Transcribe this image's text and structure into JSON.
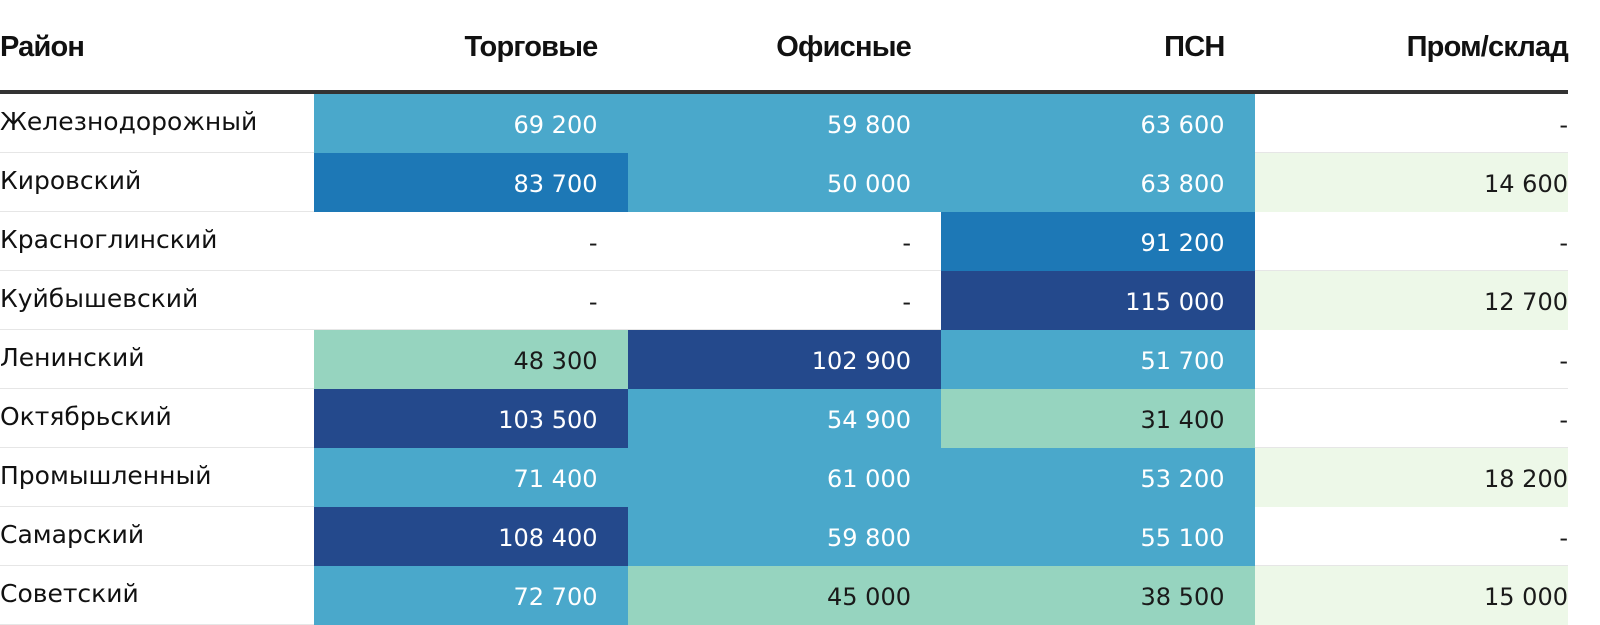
{
  "chart_data": {
    "type": "heatmap",
    "columns": [
      "Район",
      "Торговые",
      "Офисные",
      "ПСН",
      "Пром/склад"
    ],
    "rows": [
      {
        "name": "Железнодорожный",
        "values": [
          "69 200",
          "59 800",
          "63 600",
          "-"
        ]
      },
      {
        "name": "Кировский",
        "values": [
          "83 700",
          "50 000",
          "63 800",
          "14 600"
        ]
      },
      {
        "name": "Красноглинский",
        "values": [
          "-",
          "-",
          "91 200",
          "-"
        ]
      },
      {
        "name": "Куйбышевский",
        "values": [
          "-",
          "-",
          "115 000",
          "12 700"
        ]
      },
      {
        "name": "Ленинский",
        "values": [
          "48 300",
          "102 900",
          "51 700",
          "-"
        ]
      },
      {
        "name": "Октябрьский",
        "values": [
          "103 500",
          "54 900",
          "31 400",
          "-"
        ]
      },
      {
        "name": "Промышленный",
        "values": [
          "71 400",
          "61 000",
          "53 200",
          "18 200"
        ]
      },
      {
        "name": "Самарский",
        "values": [
          "108 400",
          "59 800",
          "55 100",
          "-"
        ]
      },
      {
        "name": "Советский",
        "values": [
          "72 700",
          "45 000",
          "38 500",
          "15 000"
        ]
      }
    ],
    "color_scale": [
      {
        "max": 30000,
        "color": "#edf8e8",
        "text": "#1a1a1a"
      },
      {
        "max": 50000,
        "color": "#96d4bf",
        "text": "#1a1a1a"
      },
      {
        "max": 75000,
        "color": "#4aa8cb",
        "text": "#ffffff"
      },
      {
        "max": 100000,
        "color": "#1d78b6",
        "text": "#ffffff"
      },
      {
        "max": 1000000,
        "color": "#24498c",
        "text": "#ffffff"
      }
    ],
    "empty_color": "#ffffff"
  }
}
